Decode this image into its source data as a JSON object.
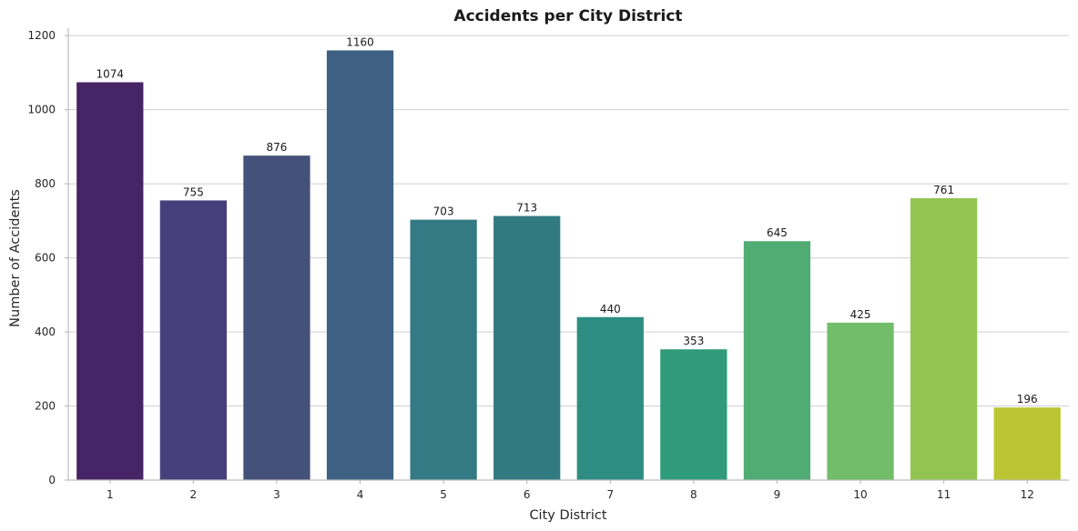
{
  "chart_data": {
    "type": "bar",
    "title": "Accidents per City District",
    "xlabel": "City District",
    "ylabel": "Number of Accidents",
    "categories": [
      "1",
      "2",
      "3",
      "4",
      "5",
      "6",
      "7",
      "8",
      "9",
      "10",
      "11",
      "12"
    ],
    "values": [
      1074,
      755,
      876,
      1160,
      703,
      713,
      440,
      353,
      645,
      425,
      761,
      196
    ],
    "ylim": [
      0,
      1220
    ],
    "yticks": [
      0,
      200,
      400,
      600,
      800,
      1000,
      1200
    ],
    "ytick_labels": [
      "0",
      "200",
      "400",
      "600",
      "800",
      "1000",
      "1200"
    ],
    "colors": [
      "#472465",
      "#473f7b",
      "#445179",
      "#3d6083",
      "#347a84",
      "#317b80",
      "#2d8d83",
      "#2f9b79",
      "#50ac72",
      "#72bd6a",
      "#93c452",
      "#bac634"
    ],
    "grid": "horizontal",
    "legend": "none"
  }
}
